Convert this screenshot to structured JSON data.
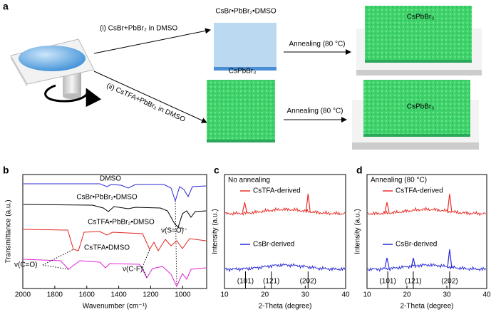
{
  "figure": {
    "a": {
      "label": "a",
      "route_i": "(i) CsBr+PbBr₂ in DMSO",
      "route_ii": "(ii) CsTFA+PbBr₂ in DMSO",
      "intermediate": "CsBr•PbBr₂•DMSO",
      "annealing_i": "Annealing (80 °C)",
      "product_i": "CsPbBr₃",
      "direct_product": "CsPbBr₃",
      "annealing_ii": "Annealing (80 °C)",
      "product_ii": "CsPbBr₃"
    },
    "b": {
      "label": "b",
      "x_label": "Wavenumber (cm⁻¹)",
      "y_label": "Transmittance (a.u.)",
      "xlim": [
        2000,
        850
      ],
      "xticks": [
        2000,
        1800,
        1600,
        1400,
        1200,
        1000
      ],
      "curve_labels": [
        "DMSO",
        "CsBr•PbBr₂•DMSO",
        "CsTFA•PbBr₂•DMSO",
        "CsTFA•DMSO"
      ],
      "annotations": [
        "ν(S=O)",
        "ν(C=O)",
        "ν(C-F)"
      ]
    },
    "c": {
      "label": "c",
      "title": "No annealing",
      "x_label": "2-Theta (degree)",
      "y_label": "Intensity (a.u.)",
      "xlim": [
        10,
        40
      ],
      "xticks": [
        10,
        20,
        30,
        40
      ],
      "series": [
        {
          "name": "CsTFA-derived",
          "color": "#e8312a",
          "peaks": [
            15,
            30.7
          ]
        },
        {
          "name": "CsBr-derived",
          "color": "#2b2bd6",
          "peaks": []
        }
      ],
      "reflections": [
        {
          "value": 15.2,
          "label": "(101)"
        },
        {
          "value": 21.6,
          "label": "(121)"
        },
        {
          "value": 30.7,
          "label": "(202)"
        }
      ]
    },
    "d": {
      "label": "d",
      "title": "Annealing (80 °C)",
      "x_label": "2-Theta (degree)",
      "y_label": "Intensity (a.u.)",
      "xlim": [
        10,
        40
      ],
      "xticks": [
        10,
        20,
        30,
        40
      ],
      "series": [
        {
          "name": "CsTFA-derived",
          "color": "#e8312a",
          "peaks": [
            15,
            30.7
          ]
        },
        {
          "name": "CsBr-derived",
          "color": "#2b2bd6",
          "peaks": [
            15,
            21.6,
            30.7
          ]
        }
      ],
      "reflections": [
        {
          "value": 15.2,
          "label": "(101)"
        },
        {
          "value": 21.6,
          "label": "(121)"
        },
        {
          "value": 30.7,
          "label": "(202)"
        }
      ]
    }
  }
}
